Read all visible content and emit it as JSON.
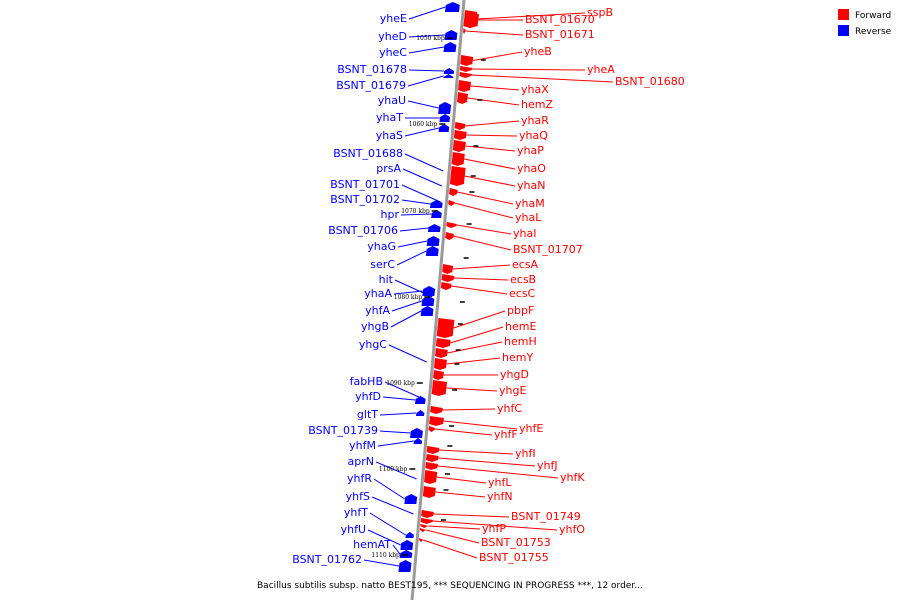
{
  "colors": {
    "forward": "#ff0000",
    "reverse": "#0000ff",
    "axis": "#9a9a9a"
  },
  "legend": {
    "forward": "Forward",
    "reverse": "Reverse"
  },
  "footer": "Bacillus subtilis subsp. natto BEST195, *** SEQUENCING IN PROGRESS ***, 12 order...",
  "ticks": [
    "1050 kbp",
    "1060 kbp",
    "1070 kbp",
    "1080 kbp",
    "1090 kbp",
    "1100 kbp",
    "1110 kbp"
  ],
  "forward_genes": [
    "sspB",
    "BSNT_01670",
    "BSNT_01671",
    "yheB",
    "yheA",
    "BSNT_01680",
    "yhaX",
    "hemZ",
    "yhaR",
    "yhaQ",
    "yhaP",
    "yhaO",
    "yhaN",
    "yhaM",
    "yhaL",
    "yhaI",
    "BSNT_01707",
    "ecsA",
    "ecsB",
    "ecsC",
    "pbpF",
    "hemE",
    "hemH",
    "hemY",
    "yhgD",
    "yhgE",
    "yhfC",
    "yhfE",
    "yhfF",
    "yhfI",
    "yhfJ",
    "yhfK",
    "yhfL",
    "yhfN",
    "BSNT_01749",
    "yhfO",
    "yhfP",
    "BSNT_01753",
    "BSNT_01755"
  ],
  "reverse_genes": [
    "yheE",
    "yheD",
    "yheC",
    "BSNT_01678",
    "BSNT_01679",
    "yhaU",
    "yhaT",
    "yhaS",
    "BSNT_01688",
    "prsA",
    "BSNT_01701",
    "BSNT_01702",
    "hpr",
    "BSNT_01706",
    "yhaG",
    "serC",
    "hit",
    "yhaA",
    "yhfA",
    "yhgB",
    "yhgC",
    "fabHB",
    "yhfD",
    "gltT",
    "BSNT_01739",
    "yhfM",
    "aprN",
    "yhfR",
    "yhfS",
    "yhfT",
    "yhfU",
    "hemAT",
    "BSNT_01762"
  ]
}
